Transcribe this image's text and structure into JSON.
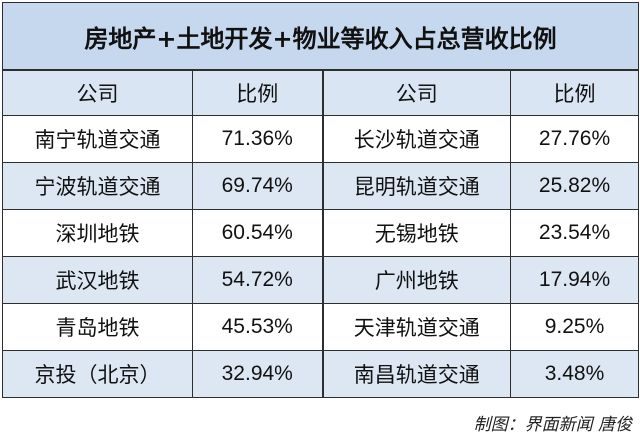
{
  "title": "房地产+土地开发+物业等收入占总营收比例",
  "headers": {
    "company_left": "公司",
    "ratio_left": "比例",
    "company_right": "公司",
    "ratio_right": "比例"
  },
  "rows": [
    {
      "left_company": "南宁轨道交通",
      "left_ratio": "71.36%",
      "right_company": "长沙轨道交通",
      "right_ratio": "27.76%"
    },
    {
      "left_company": "宁波轨道交通",
      "left_ratio": "69.74%",
      "right_company": "昆明轨道交通",
      "right_ratio": "25.82%"
    },
    {
      "left_company": "深圳地铁",
      "left_ratio": "60.54%",
      "right_company": "无锡地铁",
      "right_ratio": "23.54%"
    },
    {
      "left_company": "武汉地铁",
      "left_ratio": "54.72%",
      "right_company": "广州地铁",
      "right_ratio": "17.94%"
    },
    {
      "left_company": "青岛地铁",
      "left_ratio": "45.53%",
      "right_company": "天津轨道交通",
      "right_ratio": "9.25%"
    },
    {
      "left_company": "京投（北京）",
      "left_ratio": "32.94%",
      "right_company": "南昌轨道交通",
      "right_ratio": "3.48%"
    }
  ],
  "footer": "制图：界面新闻 唐俊",
  "colors": {
    "title_bg": "#c6d8ee",
    "header_bg": "#d9e5f3",
    "stripe_bg": "#dce7f3",
    "border": "#2e2e2e"
  }
}
